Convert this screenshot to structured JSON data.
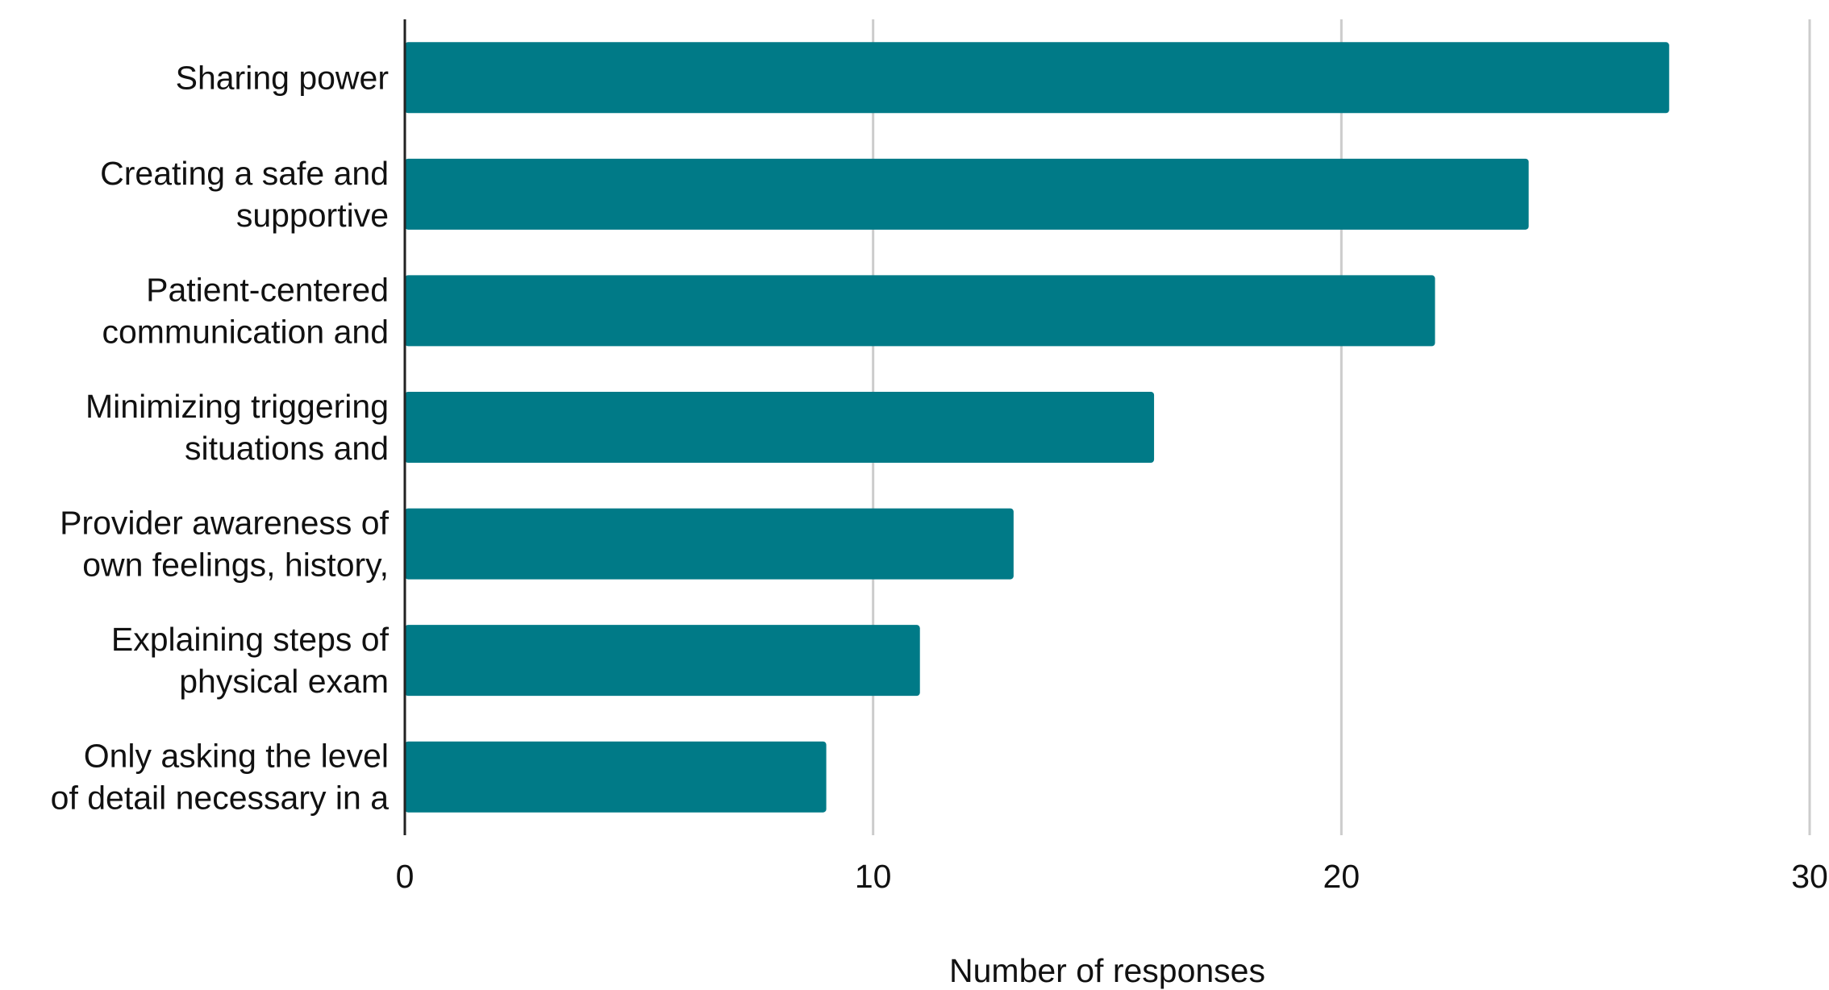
{
  "chart_data": {
    "type": "bar",
    "orientation": "horizontal",
    "title": "",
    "xlabel": "Number of responses",
    "ylabel": "",
    "xlim": [
      0,
      30
    ],
    "xticks": [
      0,
      10,
      20,
      30
    ],
    "grid": "vertical",
    "legend": "none",
    "bar_color": "#007a87",
    "categories": [
      "Sharing power",
      "Creating a safe and supportive",
      "Patient-centered communication and",
      "Minimizing triggering situations and",
      "Provider awareness of own feelings, history,",
      "Explaining steps of physical exam",
      "Only asking the level of detail necessary in a"
    ],
    "category_lines": [
      [
        "Sharing power"
      ],
      [
        "Creating a safe and",
        "supportive"
      ],
      [
        "Patient-centered",
        "communication and"
      ],
      [
        "Minimizing triggering",
        "situations and"
      ],
      [
        "Provider awareness of",
        "own feelings, history,"
      ],
      [
        "Explaining steps of",
        "physical exam"
      ],
      [
        "Only asking the level",
        "of detail necessary in a"
      ]
    ],
    "values": [
      27,
      24,
      22,
      16,
      13,
      11,
      9
    ]
  }
}
